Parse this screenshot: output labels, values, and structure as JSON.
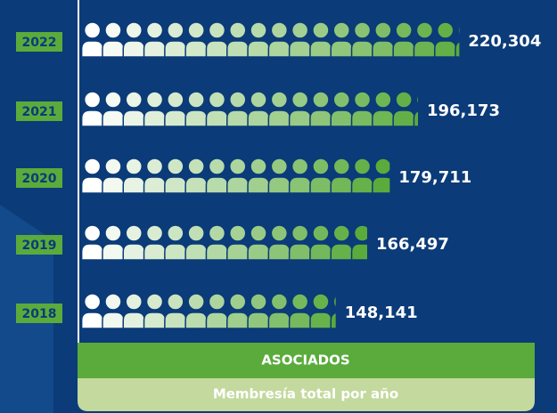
{
  "chart_data": {
    "type": "bar",
    "orientation": "horizontal",
    "categories": [
      "2022",
      "2021",
      "2020",
      "2019",
      "2018"
    ],
    "values": [
      220304,
      196173,
      179711,
      166497,
      148141
    ],
    "value_labels": [
      "220,304",
      "196,173",
      "179,711",
      "166,497",
      "148,141"
    ],
    "xlim": [
      0,
      230000
    ],
    "label": "ASOCIADOS",
    "subtitle": "Membresía total por año",
    "color": "#5aab3c",
    "icon_start_color": "#ffffff"
  }
}
